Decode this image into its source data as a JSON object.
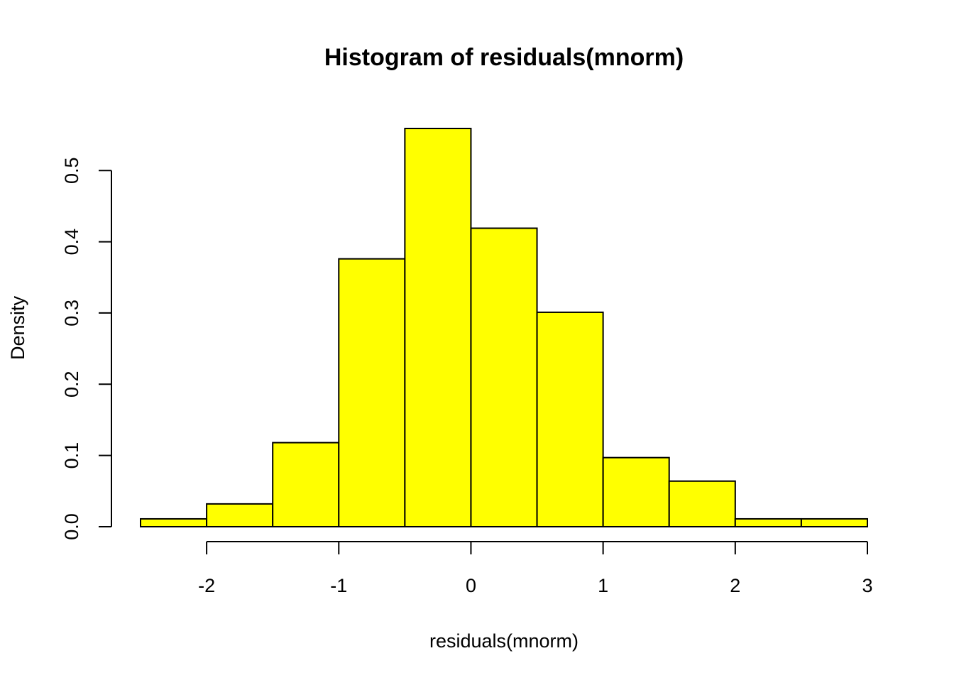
{
  "chart_data": {
    "type": "bar",
    "title": "Histogram of residuals(mnorm)",
    "xlabel": "residuals(mnorm)",
    "ylabel": "Density",
    "bins": [
      {
        "x0": -2.5,
        "x1": -2.0,
        "density": 0.011
      },
      {
        "x0": -2.0,
        "x1": -1.5,
        "density": 0.032
      },
      {
        "x0": -1.5,
        "x1": -1.0,
        "density": 0.118
      },
      {
        "x0": -1.0,
        "x1": -0.5,
        "density": 0.376
      },
      {
        "x0": -0.5,
        "x1": 0.0,
        "density": 0.559
      },
      {
        "x0": 0.0,
        "x1": 0.5,
        "density": 0.419
      },
      {
        "x0": 0.5,
        "x1": 1.0,
        "density": 0.301
      },
      {
        "x0": 1.0,
        "x1": 1.5,
        "density": 0.097
      },
      {
        "x0": 1.5,
        "x1": 2.0,
        "density": 0.064
      },
      {
        "x0": 2.0,
        "x1": 2.5,
        "density": 0.011
      },
      {
        "x0": 2.5,
        "x1": 3.0,
        "density": 0.011
      }
    ],
    "xlim": [
      -2.5,
      3.0
    ],
    "ylim": [
      0,
      0.56
    ],
    "x_ticks": [
      -2,
      -1,
      0,
      1,
      2,
      3
    ],
    "x_tick_labels": [
      "-2",
      "-1",
      "0",
      "1",
      "2",
      "3"
    ],
    "y_ticks": [
      0.0,
      0.1,
      0.2,
      0.3,
      0.4,
      0.5
    ],
    "y_tick_labels": [
      "0.0",
      "0.1",
      "0.2",
      "0.3",
      "0.4",
      "0.5"
    ],
    "bar_color": "#ffff00",
    "bar_border_color": "#000000",
    "grid": false,
    "legend": "none"
  }
}
